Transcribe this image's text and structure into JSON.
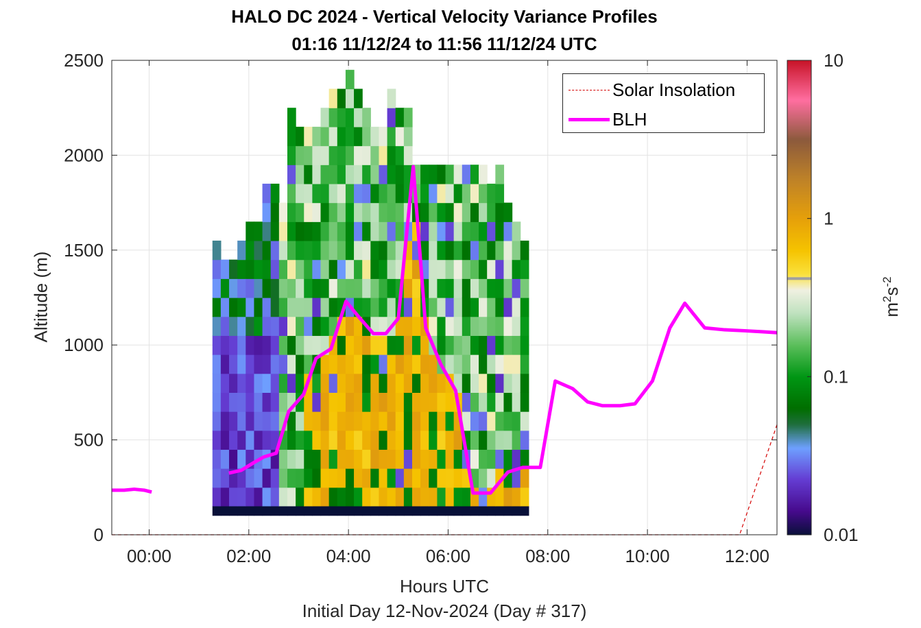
{
  "title_line1": "HALO DC 2024 - Vertical Velocity Variance Profiles",
  "title_line2": "01:16 11/12/24 to 11:56 11/12/24  UTC",
  "xlabel": "Hours UTC",
  "sublabel": "Initial Day 12-Nov-2024 (Day # 317)",
  "ylabel": "Altitude (m)",
  "legend": [
    {
      "label": "Solar Insolation",
      "color": "#d40000",
      "style": "dashed"
    },
    {
      "label": "BLH",
      "color": "#ff00ff",
      "style": "solid"
    }
  ],
  "chart_data": {
    "type": "heatmap",
    "title": "HALO DC 2024 - Vertical Velocity Variance Profiles",
    "subtitle": "01:16 11/12/24 to 11:56 11/12/24  UTC",
    "xlabel": "Hours UTC",
    "ylabel": "Altitude (m)",
    "xlim": [
      -0.75,
      12.6
    ],
    "ylim": [
      0,
      2500
    ],
    "x_ticks": [
      0,
      2,
      4,
      6,
      8,
      10,
      12
    ],
    "x_tick_labels": [
      "00:00",
      "02:00",
      "04:00",
      "06:00",
      "08:00",
      "10:00",
      "12:00"
    ],
    "y_ticks": [
      0,
      500,
      1000,
      1500,
      2000,
      2500
    ],
    "y_tick_labels": [
      "0",
      "500",
      "1000",
      "1500",
      "2000",
      "2500"
    ],
    "grid": true,
    "legend_position": "top-right",
    "colorbar": {
      "label": "m2s-2",
      "scale": "log",
      "range": [
        0.01,
        10
      ],
      "ticks": [
        0.01,
        0.1,
        1,
        10
      ],
      "tick_labels": [
        "0.01",
        "0.1",
        "1",
        "10"
      ]
    },
    "heatmap": {
      "x_start_hours": 1.27,
      "x_step_hours": 0.167,
      "y_start_m": 150,
      "y_step_m": 100,
      "columns_top_m": [
        1550,
        1450,
        1450,
        1550,
        1650,
        1600,
        1850,
        1800,
        1750,
        2250,
        2150,
        2150,
        2150,
        2250,
        2350,
        2300,
        2400,
        2300,
        2200,
        2100,
        2150,
        2300,
        2250,
        2250,
        1950,
        1900,
        1900,
        1950,
        1900,
        1950,
        1900,
        1950,
        1950,
        1800,
        1900,
        1750,
        1650,
        1500
      ],
      "surface_row_value": 0.01,
      "description_levels": "log10 variance per cell; surface row dark navy"
    },
    "series": [
      {
        "name": "BLH",
        "x": [
          -0.75,
          -0.5,
          -0.3,
          -0.1,
          0.05,
          1.6,
          1.85,
          2.1,
          2.3,
          2.55,
          2.8,
          3.1,
          3.35,
          3.65,
          3.95,
          4.2,
          4.5,
          4.75,
          5.0,
          5.3,
          5.55,
          5.85,
          6.15,
          6.5,
          6.85,
          7.2,
          7.5,
          7.85,
          8.15,
          8.5,
          8.8,
          9.1,
          9.45,
          9.75,
          10.1,
          10.45,
          10.75,
          11.15,
          11.55,
          11.95,
          12.3,
          12.6
        ],
        "y": [
          235,
          235,
          240,
          235,
          225,
          325,
          340,
          380,
          410,
          430,
          650,
          740,
          930,
          980,
          1230,
          1150,
          1060,
          1060,
          1140,
          1940,
          1090,
          900,
          760,
          220,
          220,
          330,
          355,
          355,
          810,
          770,
          700,
          680,
          680,
          690,
          810,
          1090,
          1220,
          1090,
          1080,
          1075,
          1070,
          1065
        ]
      },
      {
        "name": "Solar Insolation",
        "x": [
          -0.75,
          11.85,
          12.6
        ],
        "y": [
          0,
          0,
          580
        ]
      }
    ]
  }
}
